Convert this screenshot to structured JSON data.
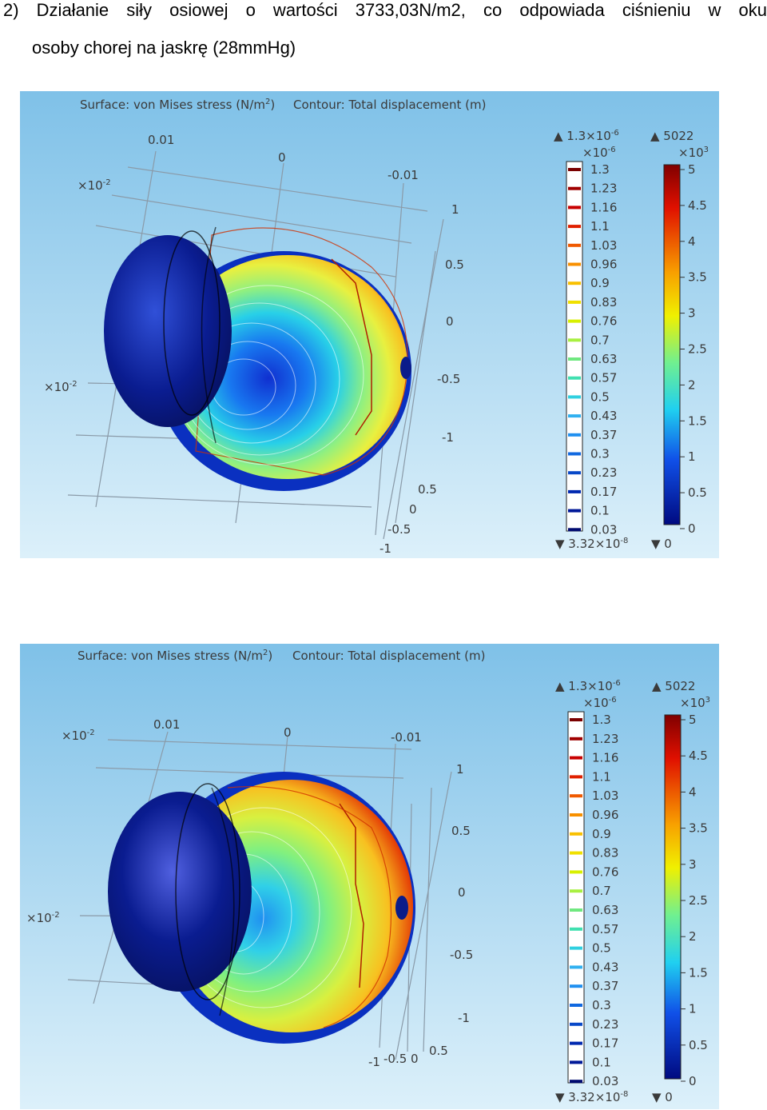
{
  "heading": {
    "number": "2)",
    "line1": "Działanie siły osiowej o wartości 3733,03N/m2, co odpowiada ciśnieniu w oku",
    "line2": "osoby chorej na jaskrę (28mmHg)"
  },
  "figures": [
    {
      "title_surface": "Surface: von Mises stress (N/m",
      "title_surface_sup": "2",
      "title_surface_end": ")",
      "title_contour": "Contour: Total displacement (m)",
      "axis_top": [
        "0.01",
        "0",
        "-0.01"
      ],
      "axis_right": [
        "1",
        "0.5",
        "0",
        "-0.5",
        "-1"
      ],
      "axis_bottom": [
        "0.5",
        "0",
        "-0.5",
        "-1"
      ],
      "scale_label_top": "×10",
      "scale_label_top_exp": "-2",
      "scale_label_left": "×10",
      "scale_label_left_exp": "-2"
    },
    {
      "title_surface": "Surface: von Mises stress (N/m",
      "title_surface_sup": "2",
      "title_surface_end": ")",
      "title_contour": "Contour: Total displacement (m)",
      "axis_top": [
        "0.01",
        "0",
        "-0.01"
      ],
      "axis_right": [
        "1",
        "0.5",
        "0",
        "-0.5",
        "-1"
      ],
      "axis_bottom": [
        "-1",
        "-0.5",
        "0",
        "0.5"
      ],
      "scale_label_top": "×10",
      "scale_label_top_exp": "-2",
      "scale_label_left": "×10",
      "scale_label_left_exp": "-2"
    }
  ],
  "contour_legend": {
    "max_label": "▲ 1.3×10",
    "max_exp": "-6",
    "unit": "×10",
    "unit_exp": "-6",
    "ticks": [
      "1.3",
      "1.23",
      "1.16",
      "1.1",
      "1.03",
      "0.96",
      "0.9",
      "0.83",
      "0.76",
      "0.7",
      "0.63",
      "0.57",
      "0.5",
      "0.43",
      "0.37",
      "0.3",
      "0.23",
      "0.17",
      "0.1",
      "0.03"
    ],
    "tick_colors": [
      "#7a0000",
      "#a00000",
      "#c80000",
      "#e02000",
      "#f05a00",
      "#f89000",
      "#f8c000",
      "#f0e000",
      "#d8f000",
      "#a8f040",
      "#70e880",
      "#40e0b0",
      "#30d0e0",
      "#30b0f0",
      "#2090f0",
      "#1068e0",
      "#0848c8",
      "#0028b0",
      "#001898",
      "#000a70"
    ],
    "min_label": "▼ 3.32×10",
    "min_exp": "-8"
  },
  "surface_legend": {
    "max_label": "▲ 5022",
    "unit": "×10",
    "unit_exp": "3",
    "ticks": [
      "5",
      "4.5",
      "4",
      "3.5",
      "3",
      "2.5",
      "2",
      "1.5",
      "1",
      "0.5",
      "0"
    ],
    "min_label": "▼ 0"
  },
  "colors": {
    "bg_top": "#86c6ea",
    "bg_bottom": "#d8eef8",
    "sclera_dark": "#0a1c8a",
    "stress_high": "#c00000",
    "stress_mid": "#f8e800",
    "stress_low": "#0020a0"
  }
}
